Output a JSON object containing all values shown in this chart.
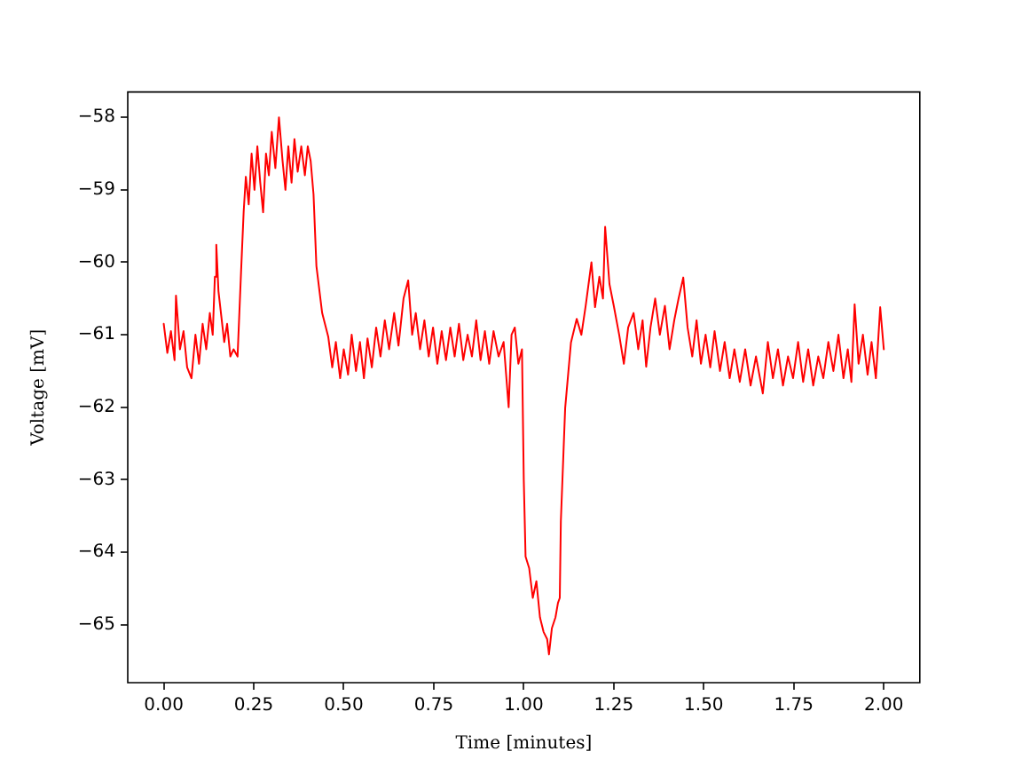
{
  "chart_data": {
    "type": "line",
    "xlabel": "Time [minutes]",
    "ylabel": "Voltage [mV]",
    "xlim": [
      -0.1,
      2.1
    ],
    "ylim": [
      -65.8,
      -57.65
    ],
    "xticks": [
      {
        "value": 0,
        "label": "0.00"
      },
      {
        "value": 0.25,
        "label": "0.25"
      },
      {
        "value": 0.5,
        "label": "0.50"
      },
      {
        "value": 0.75,
        "label": "0.75"
      },
      {
        "value": 1,
        "label": "1.00"
      },
      {
        "value": 1.25,
        "label": "1.25"
      },
      {
        "value": 1.5,
        "label": "1.50"
      },
      {
        "value": 1.75,
        "label": "1.75"
      },
      {
        "value": 2,
        "label": "2.00"
      }
    ],
    "yticks": [
      {
        "value": -58,
        "label": "−58"
      },
      {
        "value": -59,
        "label": "−59"
      },
      {
        "value": -60,
        "label": "−60"
      },
      {
        "value": -61,
        "label": "−61"
      },
      {
        "value": -62,
        "label": "−62"
      },
      {
        "value": -63,
        "label": "−63"
      },
      {
        "value": -64,
        "label": "−64"
      },
      {
        "value": -65,
        "label": "−65"
      }
    ],
    "x": [
      0,
      0.01,
      0.02,
      0.03,
      0.034,
      0.045,
      0.055,
      0.065,
      0.077,
      0.088,
      0.098,
      0.108,
      0.118,
      0.128,
      0.136,
      0.142,
      0.146,
      0.152,
      0.16,
      0.168,
      0.176,
      0.185,
      0.194,
      0.205,
      0.215,
      0.222,
      0.228,
      0.236,
      0.244,
      0.252,
      0.26,
      0.268,
      0.276,
      0.284,
      0.292,
      0.3,
      0.31,
      0.32,
      0.33,
      0.338,
      0.346,
      0.355,
      0.363,
      0.372,
      0.382,
      0.392,
      0.4,
      0.408,
      0.416,
      0.424,
      0.44,
      0.457,
      0.468,
      0.478,
      0.49,
      0.5,
      0.512,
      0.522,
      0.534,
      0.545,
      0.556,
      0.566,
      0.578,
      0.59,
      0.602,
      0.614,
      0.626,
      0.64,
      0.652,
      0.666,
      0.679,
      0.69,
      0.7,
      0.712,
      0.724,
      0.736,
      0.748,
      0.76,
      0.772,
      0.784,
      0.796,
      0.808,
      0.82,
      0.832,
      0.844,
      0.856,
      0.868,
      0.88,
      0.892,
      0.904,
      0.916,
      0.93,
      0.944,
      0.958,
      0.966,
      0.975,
      0.985,
      0.995,
      1.0,
      1.005,
      1.015,
      1.025,
      1.035,
      1.045,
      1.055,
      1.065,
      1.07,
      1.078,
      1.088,
      1.095,
      1.1,
      1.103,
      1.115,
      1.131,
      1.147,
      1.16,
      1.172,
      1.188,
      1.198,
      1.21,
      1.22,
      1.226,
      1.238,
      1.25,
      1.265,
      1.278,
      1.29,
      1.305,
      1.318,
      1.33,
      1.34,
      1.352,
      1.365,
      1.378,
      1.392,
      1.405,
      1.418,
      1.43,
      1.443,
      1.455,
      1.468,
      1.48,
      1.492,
      1.505,
      1.518,
      1.53,
      1.545,
      1.558,
      1.572,
      1.585,
      1.6,
      1.615,
      1.63,
      1.645,
      1.664,
      1.678,
      1.692,
      1.706,
      1.72,
      1.734,
      1.748,
      1.762,
      1.776,
      1.79,
      1.804,
      1.818,
      1.832,
      1.846,
      1.86,
      1.874,
      1.888,
      1.9,
      1.91,
      1.919,
      1.93,
      1.942,
      1.955,
      1.966,
      1.978,
      1.99,
      2.0
    ],
    "series": [
      {
        "color": "#ff0000",
        "values": [
          -60.85,
          -61.25,
          -60.95,
          -61.35,
          -60.46,
          -61.2,
          -60.95,
          -61.45,
          -61.6,
          -61.0,
          -61.4,
          -60.85,
          -61.2,
          -60.7,
          -61.0,
          -60.2,
          -59.76,
          -60.4,
          -60.75,
          -61.1,
          -60.85,
          -61.3,
          -61.2,
          -61.3,
          -60.1,
          -59.3,
          -58.82,
          -59.2,
          -58.5,
          -59.0,
          -58.4,
          -58.9,
          -59.31,
          -58.5,
          -58.8,
          -58.2,
          -58.7,
          -58.0,
          -58.6,
          -59.0,
          -58.4,
          -58.9,
          -58.3,
          -58.75,
          -58.4,
          -58.8,
          -58.4,
          -58.6,
          -59.06,
          -60.05,
          -60.7,
          -61.03,
          -61.45,
          -61.1,
          -61.6,
          -61.2,
          -61.55,
          -61.0,
          -61.5,
          -61.1,
          -61.6,
          -61.05,
          -61.45,
          -60.9,
          -61.3,
          -60.8,
          -61.2,
          -60.7,
          -61.15,
          -60.5,
          -60.25,
          -61.0,
          -60.7,
          -61.2,
          -60.8,
          -61.3,
          -60.9,
          -61.4,
          -60.95,
          -61.35,
          -60.9,
          -61.3,
          -60.85,
          -61.35,
          -61.0,
          -61.3,
          -60.8,
          -61.35,
          -60.95,
          -61.4,
          -60.95,
          -61.3,
          -61.1,
          -62.0,
          -61.0,
          -60.9,
          -61.4,
          -61.2,
          -63.0,
          -64.06,
          -64.22,
          -64.63,
          -64.4,
          -64.9,
          -65.1,
          -65.2,
          -65.41,
          -65.05,
          -64.9,
          -64.7,
          -64.63,
          -63.57,
          -62.01,
          -61.11,
          -60.78,
          -61.0,
          -60.6,
          -60.0,
          -60.62,
          -60.2,
          -60.5,
          -59.51,
          -60.3,
          -60.6,
          -61.0,
          -61.4,
          -60.9,
          -60.7,
          -61.2,
          -60.8,
          -61.44,
          -60.9,
          -60.5,
          -61.0,
          -60.6,
          -61.2,
          -60.8,
          -60.5,
          -60.21,
          -60.9,
          -61.3,
          -60.8,
          -61.4,
          -61.0,
          -61.45,
          -60.95,
          -61.5,
          -61.1,
          -61.6,
          -61.2,
          -61.65,
          -61.2,
          -61.7,
          -61.3,
          -61.81,
          -61.1,
          -61.6,
          -61.2,
          -61.7,
          -61.3,
          -61.6,
          -61.1,
          -61.65,
          -61.2,
          -61.7,
          -61.3,
          -61.6,
          -61.1,
          -61.5,
          -61.0,
          -61.6,
          -61.2,
          -61.65,
          -60.58,
          -61.4,
          -61.0,
          -61.55,
          -61.1,
          -61.6,
          -60.62,
          -61.2
        ]
      }
    ]
  }
}
